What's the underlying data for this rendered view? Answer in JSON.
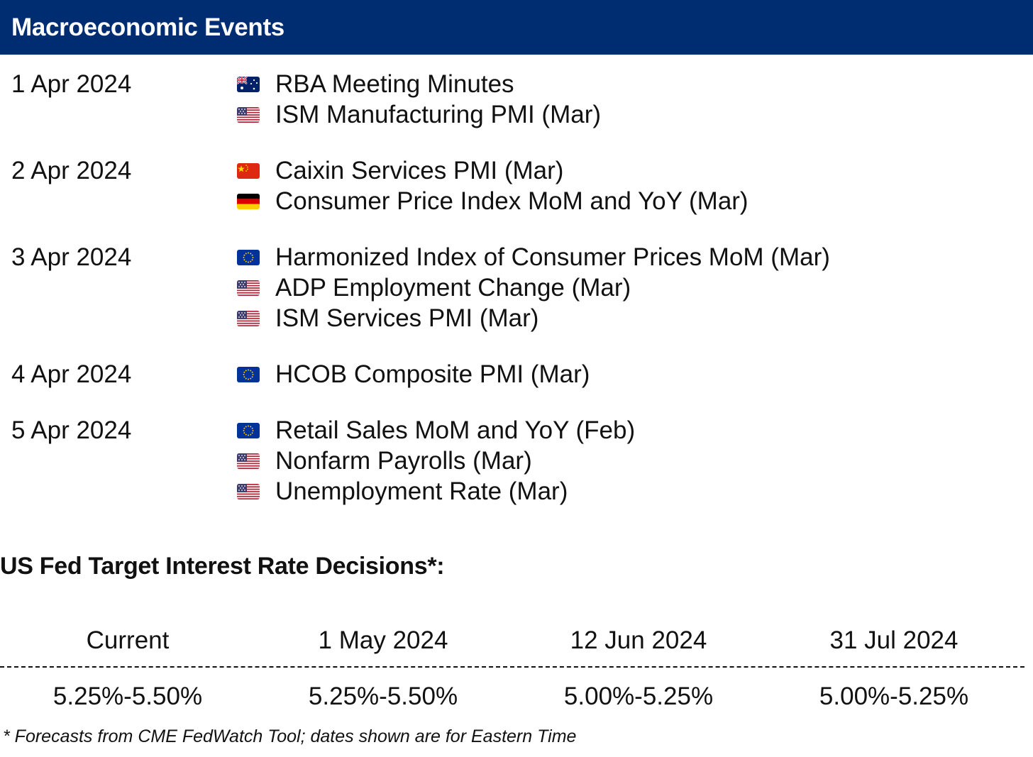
{
  "header": {
    "title": "Macroeconomic Events"
  },
  "colors": {
    "header_bg": "#002d72"
  },
  "days": [
    {
      "date": "1 Apr 2024",
      "events": [
        {
          "flag": "australia-flag-icon",
          "label": "RBA Meeting Minutes"
        },
        {
          "flag": "us-flag-icon",
          "label": "ISM Manufacturing PMI (Mar)"
        }
      ]
    },
    {
      "date": "2 Apr 2024",
      "events": [
        {
          "flag": "china-flag-icon",
          "label": "Caixin Services PMI (Mar)"
        },
        {
          "flag": "germany-flag-icon",
          "label": "Consumer Price Index MoM and YoY (Mar)"
        }
      ]
    },
    {
      "date": "3 Apr 2024",
      "events": [
        {
          "flag": "eu-flag-icon",
          "label": "Harmonized Index of Consumer Prices MoM (Mar)"
        },
        {
          "flag": "us-flag-icon",
          "label": "ADP Employment Change (Mar)"
        },
        {
          "flag": "us-flag-icon",
          "label": "ISM Services PMI (Mar)"
        }
      ]
    },
    {
      "date": "4 Apr 2024",
      "events": [
        {
          "flag": "eu-flag-icon",
          "label": "HCOB Composite PMI (Mar)"
        }
      ]
    },
    {
      "date": "5 Apr 2024",
      "events": [
        {
          "flag": "eu-flag-icon",
          "label": "Retail Sales MoM and YoY (Feb)"
        },
        {
          "flag": "us-flag-icon",
          "label": "Nonfarm Payrolls (Mar)"
        },
        {
          "flag": "us-flag-icon",
          "label": "Unemployment Rate (Mar)"
        }
      ]
    }
  ],
  "fed": {
    "title": "US Fed Target Interest Rate Decisions*:",
    "headers": [
      "Current",
      "1 May 2024",
      "12 Jun 2024",
      "31 Jul 2024"
    ],
    "values": [
      "5.25%-5.50%",
      "5.25%-5.50%",
      "5.00%-5.25%",
      "5.00%-5.25%"
    ],
    "footnote": "* Forecasts from CME FedWatch Tool; dates shown are for Eastern Time"
  }
}
